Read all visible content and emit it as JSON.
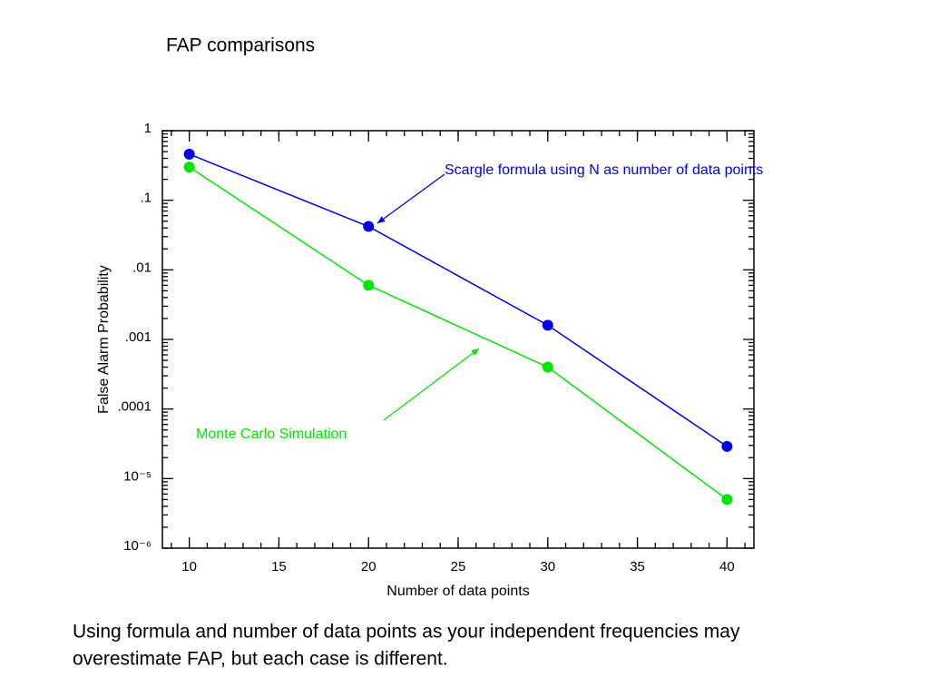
{
  "chart_data": {
    "type": "line",
    "title": "FAP comparisons",
    "x_label": "Number of data points",
    "y_label": "False Alarm Probability",
    "x": [
      10,
      20,
      30,
      40
    ],
    "series": [
      {
        "name": "Scargle formula using N as number of data points",
        "color": "#0000e6",
        "values": [
          0.46,
          0.042,
          0.0016,
          2.9e-05
        ]
      },
      {
        "name": "Monte Carlo Simulation",
        "color": "#00e600",
        "values": [
          0.3,
          0.006,
          0.0004,
          5e-06
        ]
      }
    ],
    "xlim": [
      8.5,
      41.5
    ],
    "xticks": [
      10,
      15,
      20,
      25,
      30,
      35,
      40
    ],
    "ylim": [
      1e-06,
      1
    ],
    "yticks": [
      {
        "value": 1e-06,
        "label": "10⁻⁶"
      },
      {
        "value": 1e-05,
        "label": "10⁻⁵"
      },
      {
        "value": 0.0001,
        "label": ".0001"
      },
      {
        "value": 0.001,
        "label": ".001"
      },
      {
        "value": 0.01,
        "label": ".01"
      },
      {
        "value": 0.1,
        "label": ".1"
      },
      1
    ],
    "y_log": true,
    "caption": [
      "Using formula and number of data points as your independent frequencies may",
      "overestimate FAP, but each case is different."
    ]
  }
}
